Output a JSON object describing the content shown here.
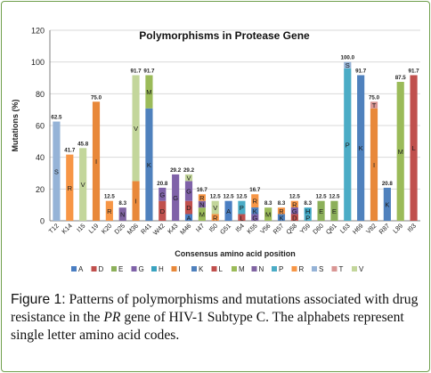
{
  "chart_data": {
    "type": "bar",
    "title": "Polymorphisms in Protease Gene",
    "xlabel": "Consensus amino acid position",
    "ylabel": "Mutations (%)",
    "ylim": [
      0,
      120
    ],
    "yticks": [
      0,
      20,
      40,
      60,
      80,
      100,
      120
    ],
    "grid": true,
    "legend_position": "bottom",
    "categories": [
      "T12",
      "K14",
      "I15",
      "L19",
      "K20",
      "D25",
      "M36",
      "R41",
      "W42",
      "K43",
      "M46",
      "I47",
      "I50",
      "G51",
      "I54",
      "K55",
      "V56",
      "R57",
      "Q58",
      "Y59",
      "D60",
      "Q61",
      "L63",
      "H69",
      "V82",
      "R87",
      "L89",
      "I93"
    ],
    "totals": [
      62.5,
      41.7,
      45.8,
      75.0,
      12.5,
      8.3,
      91.7,
      91.7,
      20.8,
      29.2,
      29.2,
      16.7,
      12.5,
      12.5,
      12.5,
      16.7,
      8.3,
      8.3,
      12.5,
      8.3,
      12.5,
      12.5,
      100.0,
      91.7,
      75.0,
      20.8,
      87.5,
      91.7
    ],
    "total_labels": [
      "62.5",
      "41.7",
      "45.8",
      "75.0",
      "12.5",
      "8.3",
      "91.7",
      "91.7",
      "20.8",
      "29.2",
      "29.2",
      "16.7",
      "12.5",
      "12.5",
      "12.5",
      "16.7",
      "8.3",
      "8.3",
      "12.5",
      "8.3",
      "12.5",
      "12.5",
      "100.0",
      "91.7",
      "75.0",
      "20.8",
      "87.5",
      "91.7"
    ],
    "stacks": [
      [
        {
          "aa": "S",
          "value": 62.5
        }
      ],
      [
        {
          "aa": "R",
          "value": 41.7
        }
      ],
      [
        {
          "aa": "V",
          "value": 45.8
        }
      ],
      [
        {
          "aa": "I",
          "value": 75.0
        }
      ],
      [
        {
          "aa": "R",
          "value": 12.5
        }
      ],
      [
        {
          "aa": "N",
          "value": 8.3
        }
      ],
      [
        {
          "aa": "I",
          "value": 25.0
        },
        {
          "aa": "V",
          "value": 66.7
        }
      ],
      [
        {
          "aa": "K",
          "value": 70.8
        },
        {
          "aa": "M",
          "value": 20.9
        }
      ],
      [
        {
          "aa": "D",
          "value": 12.5
        },
        {
          "aa": "G",
          "value": 8.3
        }
      ],
      [
        {
          "aa": "G",
          "value": 29.2
        }
      ],
      [
        {
          "aa": "A",
          "value": 4.2
        },
        {
          "aa": "D",
          "value": 8.3
        },
        {
          "aa": "G",
          "value": 12.5
        },
        {
          "aa": "V",
          "value": 4.2
        }
      ],
      [
        {
          "aa": "M",
          "value": 8.3
        },
        {
          "aa": "N",
          "value": 4.2
        },
        {
          "aa": "R",
          "value": 4.2
        }
      ],
      [
        {
          "aa": "R",
          "value": 4.2
        },
        {
          "aa": "V",
          "value": 8.3
        }
      ],
      [
        {
          "aa": "A",
          "value": 12.5
        }
      ],
      [
        {
          "aa": "L",
          "value": 4.2
        },
        {
          "aa": "P",
          "value": 8.3
        }
      ],
      [
        {
          "aa": "G",
          "value": 4.2
        },
        {
          "aa": "K",
          "value": 4.2
        },
        {
          "aa": "R",
          "value": 8.3
        }
      ],
      [
        {
          "aa": "M",
          "value": 8.3
        }
      ],
      [
        {
          "aa": "K",
          "value": 4.2
        },
        {
          "aa": "R",
          "value": 4.1
        }
      ],
      [
        {
          "aa": "D",
          "value": 4.2
        },
        {
          "aa": "G",
          "value": 4.2
        },
        {
          "aa": "R",
          "value": 4.1
        }
      ],
      [
        {
          "aa": "P",
          "value": 4.2
        },
        {
          "aa": "H",
          "value": 4.1
        }
      ],
      [
        {
          "aa": "E",
          "value": 12.5
        }
      ],
      [
        {
          "aa": "E",
          "value": 12.5
        }
      ],
      [
        {
          "aa": "P",
          "value": 96.0
        },
        {
          "aa": "S",
          "value": 4.0
        }
      ],
      [
        {
          "aa": "K",
          "value": 91.7
        }
      ],
      [
        {
          "aa": "I",
          "value": 70.8
        },
        {
          "aa": "T",
          "value": 4.2
        }
      ],
      [
        {
          "aa": "K",
          "value": 20.8
        }
      ],
      [
        {
          "aa": "M",
          "value": 87.5
        }
      ],
      [
        {
          "aa": "L",
          "value": 91.7
        }
      ]
    ],
    "series_colors": {
      "A": "#4a7ec2",
      "D": "#c0504d",
      "E": "#8cb05a",
      "G": "#7f62a8",
      "H": "#3aa3c0",
      "I": "#e8883a",
      "K": "#4f81bd",
      "L": "#c0504d",
      "M": "#9bbb59",
      "N": "#8064a2",
      "P": "#4bacc6",
      "R": "#f79646",
      "S": "#95b3d7",
      "T": "#d99694",
      "V": "#c3d69b"
    },
    "legend": [
      "A",
      "D",
      "E",
      "G",
      "H",
      "I",
      "K",
      "L",
      "M",
      "N",
      "P",
      "R",
      "S",
      "T",
      "V"
    ]
  },
  "caption": {
    "label": "Figure 1:",
    "part1": " Patterns of polymorphisms and mutations associated with drug resistance in the ",
    "italic": "PR",
    "part2": " gene of HIV-1 Subtype C. The alphabets represent single letter amino acid codes."
  }
}
